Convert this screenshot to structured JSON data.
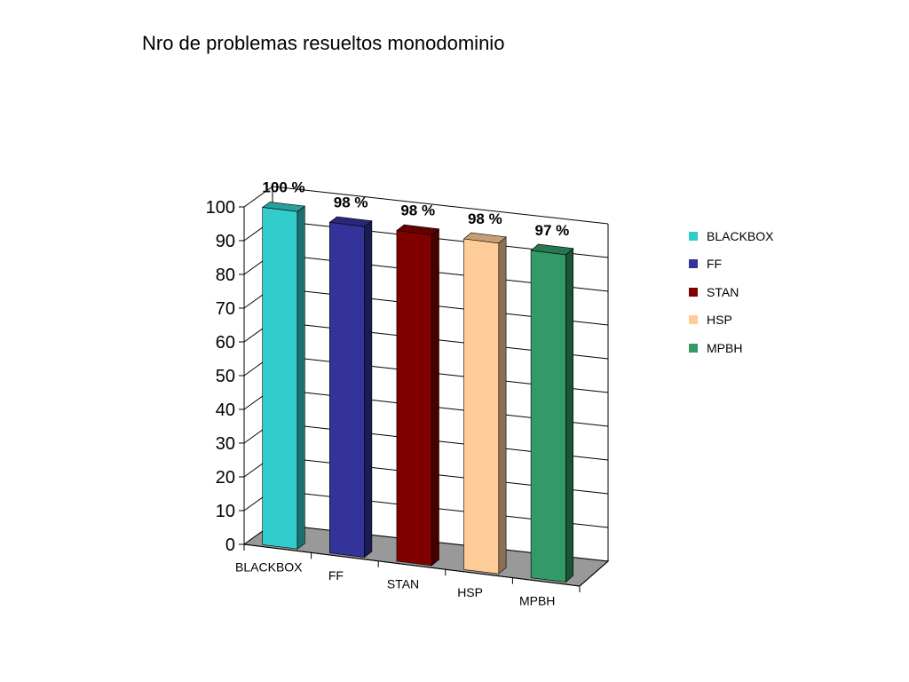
{
  "chart_data": {
    "type": "bar",
    "title": "Nro de problemas resueltos monodominio",
    "categories": [
      "BLACKBOX",
      "FF",
      "STAN",
      "HSP",
      "MPBH"
    ],
    "values": [
      100,
      98,
      98,
      98,
      97
    ],
    "data_labels": [
      "100 %",
      "98 %",
      "98 %",
      "98 %",
      "97 %"
    ],
    "ylim": [
      0,
      100
    ],
    "yticks": [
      "0",
      "10",
      "20",
      "30",
      "40",
      "50",
      "60",
      "70",
      "80",
      "90",
      "100"
    ],
    "xlabel": "",
    "ylabel": "",
    "grid": true,
    "legend": "right",
    "style": "3d-column",
    "series_colors": [
      "#33CCCC",
      "#333399",
      "#800000",
      "#FFCC99",
      "#339966"
    ]
  }
}
